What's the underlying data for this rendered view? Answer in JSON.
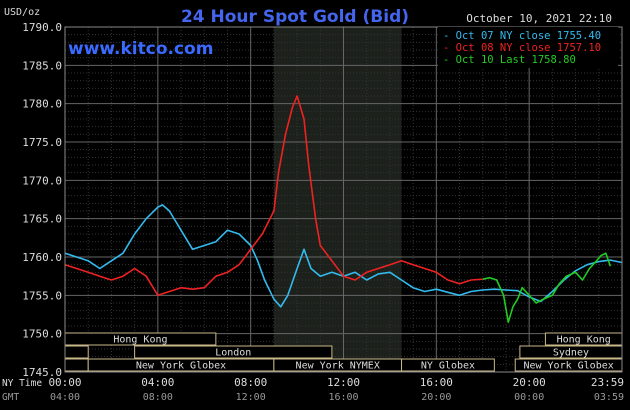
{
  "chart_data": {
    "type": "line",
    "title": "24 Hour Spot Gold (Bid)",
    "watermark": "www.kitco.com",
    "timestamp": "October 10, 2021 22:10",
    "ylabel": "USD/oz",
    "ylim": [
      1745,
      1790
    ],
    "y_ticks": [
      "1790.0",
      "1785.0",
      "1780.0",
      "1775.0",
      "1770.0",
      "1765.0",
      "1760.0",
      "1755.0",
      "1750.0",
      "1745.0"
    ],
    "y_tick_values": [
      1790,
      1785,
      1780,
      1775,
      1770,
      1765,
      1760,
      1755,
      1750,
      1745
    ],
    "xlim": [
      0,
      24
    ],
    "x_ticks_ny": [
      "00:00",
      "04:00",
      "08:00",
      "12:00",
      "16:00",
      "20:00",
      "23:59"
    ],
    "x_ticks_gmt": [
      "04:00",
      "08:00",
      "12:00",
      "16:00",
      "20:00",
      "00:00",
      "03:59"
    ],
    "x_tick_hours": [
      0,
      4,
      8,
      12,
      16,
      20,
      23.98
    ],
    "x_axis_row_labels": [
      "NY Time",
      "GMT"
    ],
    "legend_placement": "top-right",
    "grid": true,
    "highlight_region_hours": [
      9,
      14.5
    ],
    "series": [
      {
        "name": "Oct 07 NY close 1755.40",
        "color": "#33bbee",
        "x": [
          0,
          0.5,
          1,
          1.5,
          2,
          2.5,
          3,
          3.5,
          4,
          4.2,
          4.5,
          4.8,
          5,
          5.5,
          6,
          6.5,
          7,
          7.5,
          8,
          8.3,
          8.6,
          9,
          9.3,
          9.6,
          10,
          10.3,
          10.6,
          11,
          11.5,
          12,
          12.5,
          13,
          13.5,
          14,
          14.5,
          15,
          15.5,
          16,
          16.5,
          17,
          17.5,
          18,
          18.5,
          19,
          19.5,
          20,
          20.5,
          21,
          21.5,
          22,
          22.5,
          23,
          23.5,
          23.98
        ],
        "values": [
          1760.5,
          1760.0,
          1759.5,
          1758.5,
          1759.5,
          1760.5,
          1763.0,
          1765.0,
          1766.5,
          1766.8,
          1766.0,
          1764.5,
          1763.5,
          1761.0,
          1761.5,
          1762.0,
          1763.5,
          1763.0,
          1761.5,
          1759.5,
          1757.0,
          1754.5,
          1753.5,
          1755.0,
          1758.5,
          1761.0,
          1758.5,
          1757.5,
          1758.0,
          1757.5,
          1758.0,
          1757.0,
          1757.8,
          1758.0,
          1757.0,
          1756.0,
          1755.5,
          1755.8,
          1755.4,
          1755.0,
          1755.5,
          1755.7,
          1755.8,
          1755.7,
          1755.6,
          1754.8,
          1754.2,
          1755.5,
          1757.0,
          1758.2,
          1759.0,
          1759.4,
          1759.6,
          1759.3
        ]
      },
      {
        "name": "Oct 08 NY close 1757.10",
        "color": "#ee2222",
        "x": [
          0,
          0.5,
          1,
          1.5,
          2,
          2.5,
          3,
          3.5,
          4,
          4.5,
          5,
          5.5,
          6,
          6.5,
          7,
          7.5,
          8,
          8.5,
          9,
          9.2,
          9.5,
          9.8,
          10,
          10.3,
          10.5,
          10.8,
          11,
          11.5,
          12,
          12.5,
          13,
          13.5,
          14,
          14.5,
          15,
          15.5,
          16,
          16.5,
          17,
          17.5,
          18
        ],
        "values": [
          1759.0,
          1758.5,
          1758.0,
          1757.5,
          1757.0,
          1757.5,
          1758.5,
          1757.5,
          1755.0,
          1755.5,
          1756.0,
          1755.8,
          1756.0,
          1757.5,
          1758.0,
          1759.0,
          1761.0,
          1763.0,
          1766.0,
          1771.0,
          1776.0,
          1779.5,
          1781.0,
          1778.0,
          1772.0,
          1765.0,
          1761.5,
          1759.5,
          1757.5,
          1757.0,
          1758.0,
          1758.5,
          1759.0,
          1759.5,
          1759.0,
          1758.5,
          1758.0,
          1757.0,
          1756.5,
          1757.0,
          1757.1
        ]
      },
      {
        "name": "Oct 10 Last 1758.80",
        "color": "#22cc22",
        "x": [
          18,
          18.3,
          18.6,
          18.9,
          19.1,
          19.3,
          19.5,
          19.7,
          20,
          20.3,
          20.6,
          21,
          21.3,
          21.6,
          22,
          22.3,
          22.6,
          22.9,
          23.1,
          23.3,
          23.5
        ],
        "values": [
          1757.1,
          1757.3,
          1757.0,
          1755.0,
          1751.5,
          1753.5,
          1754.5,
          1756.0,
          1755.0,
          1754.0,
          1754.5,
          1755.0,
          1756.5,
          1757.5,
          1758.0,
          1757.0,
          1758.5,
          1759.5,
          1760.2,
          1760.5,
          1758.8
        ]
      }
    ],
    "sessions": [
      {
        "name": "Hong Kong",
        "row": 0,
        "start": 0,
        "end": 6.5
      },
      {
        "name": "Hong Kong",
        "row": 0,
        "start": 20.7,
        "end": 24
      },
      {
        "name": "",
        "row": 1,
        "start": 0,
        "end": 1
      },
      {
        "name": "London",
        "row": 1,
        "start": 3,
        "end": 11.5
      },
      {
        "name": "Sydney",
        "row": 1,
        "start": 19.6,
        "end": 24
      },
      {
        "name": "",
        "row": 2,
        "start": 0,
        "end": 1
      },
      {
        "name": "New York Globex",
        "row": 2,
        "start": 1,
        "end": 9
      },
      {
        "name": "New York NYMEX",
        "row": 2,
        "start": 9,
        "end": 14.5
      },
      {
        "name": "NY Globex",
        "row": 2,
        "start": 14.5,
        "end": 18.5
      },
      {
        "name": "New York Globex",
        "row": 2,
        "start": 19.4,
        "end": 24
      }
    ]
  }
}
